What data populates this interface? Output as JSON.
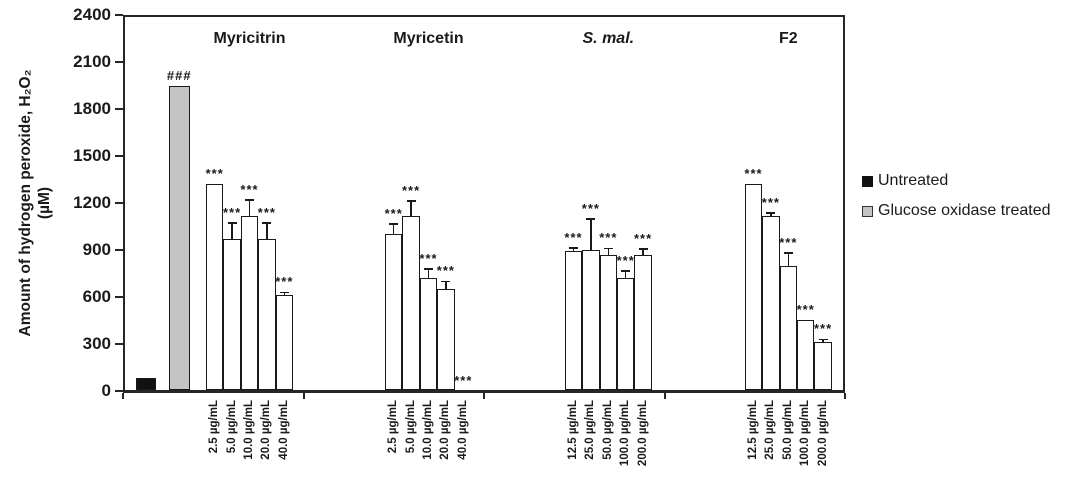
{
  "chart_data": {
    "type": "bar",
    "title": "",
    "xlabel": "",
    "ylabel_line1": "Amount of hydrogen peroxide, H₂O₂",
    "ylabel_line2": "(µM)",
    "ylim": [
      0,
      2400
    ],
    "yticks": [
      0,
      300,
      600,
      900,
      1200,
      1500,
      1800,
      2100,
      2400
    ],
    "grid": false,
    "legend_position": "right",
    "legend": [
      {
        "label": "Untreated",
        "fill": "#111111",
        "border": "#111111"
      },
      {
        "label": "Glucose oxidase treated",
        "fill": "#c4c4c4",
        "border": "#333333"
      }
    ],
    "control_bars": [
      {
        "name": "Untreated",
        "value": 85,
        "error_top": null,
        "sig": null,
        "fill": "#111111"
      },
      {
        "name": "Glucose oxidase treated",
        "value": 1950,
        "error_top": null,
        "sig": "###",
        "fill": "#c4c4c4"
      }
    ],
    "bar_fill": "#ffffff",
    "groups": [
      {
        "name": "Myricitrin",
        "italic": false,
        "bars": [
          {
            "label": "2.5 µg/mL",
            "value": 1320,
            "error_top": null,
            "sig": "***"
          },
          {
            "label": "5.0 µg/mL",
            "value": 970,
            "error_top": 1075,
            "sig": "***"
          },
          {
            "label": "10.0 µg/mL",
            "value": 1115,
            "error_top": 1220,
            "sig": "***"
          },
          {
            "label": "20.0 µg/mL",
            "value": 970,
            "error_top": 1075,
            "sig": "***"
          },
          {
            "label": "40.0 µg/mL",
            "value": 610,
            "error_top": 630,
            "sig": "***"
          }
        ]
      },
      {
        "name": "Myricetin",
        "italic": false,
        "bars": [
          {
            "label": "2.5 µg/mL",
            "value": 1000,
            "error_top": 1065,
            "sig": "***"
          },
          {
            "label": "5.0 µg/mL",
            "value": 1115,
            "error_top": 1215,
            "sig": "***"
          },
          {
            "label": "10.0 µg/mL",
            "value": 720,
            "error_top": 780,
            "sig": "***"
          },
          {
            "label": "20.0 µg/mL",
            "value": 650,
            "error_top": 700,
            "sig": "***"
          },
          {
            "label": "40.0 µg/mL",
            "value": 0,
            "error_top": null,
            "sig": "***"
          }
        ]
      },
      {
        "name": "S. mal.",
        "italic": true,
        "bars": [
          {
            "label": "12.5 µg/mL",
            "value": 895,
            "error_top": 915,
            "sig": "***"
          },
          {
            "label": "25.0 µg/mL",
            "value": 900,
            "error_top": 1100,
            "sig": "***"
          },
          {
            "label": "50.0 µg/mL",
            "value": 870,
            "error_top": 910,
            "sig": "***"
          },
          {
            "label": "100.0 µg/mL",
            "value": 720,
            "error_top": 765,
            "sig": "***"
          },
          {
            "label": "200.0 µg/mL",
            "value": 865,
            "error_top": 905,
            "sig": "***"
          }
        ]
      },
      {
        "name": "F2",
        "italic": false,
        "bars": [
          {
            "label": "12.5 µg/mL",
            "value": 1320,
            "error_top": null,
            "sig": "***"
          },
          {
            "label": "25.0 µg/mL",
            "value": 1120,
            "error_top": 1135,
            "sig": "***"
          },
          {
            "label": "50.0 µg/mL",
            "value": 800,
            "error_top": 880,
            "sig": "***"
          },
          {
            "label": "100.0 µg/mL",
            "value": 455,
            "error_top": null,
            "sig": "***"
          },
          {
            "label": "200.0 µg/mL",
            "value": 315,
            "error_top": 330,
            "sig": "***"
          }
        ]
      }
    ]
  }
}
